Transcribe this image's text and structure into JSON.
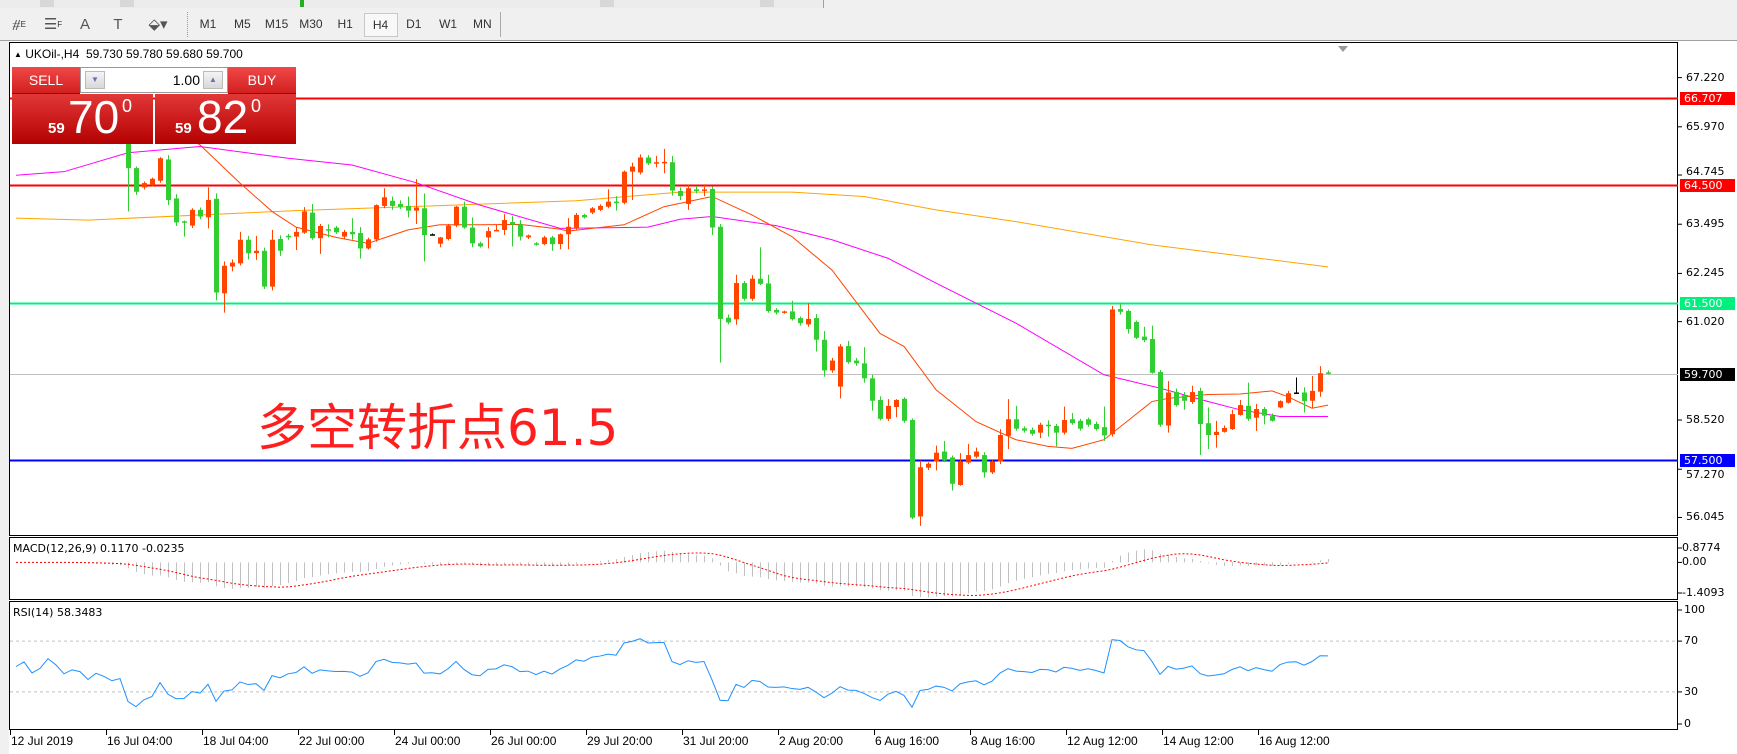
{
  "toolbar": {
    "tools": [
      {
        "name": "fibonacci-fan-icon",
        "glyph": "⧣",
        "sub": "E"
      },
      {
        "name": "channels-icon",
        "glyph": "☰",
        "sub": "F"
      },
      {
        "name": "text-icon",
        "glyph": "A",
        "sub": ""
      },
      {
        "name": "text-label-icon",
        "glyph": "T",
        "sub": ""
      },
      {
        "name": "arrows-icon",
        "glyph": "⬙▾",
        "sub": ""
      }
    ],
    "periods": [
      "M1",
      "M5",
      "M15",
      "M30",
      "H1",
      "H4",
      "D1",
      "W1",
      "MN"
    ],
    "active_period": "H4"
  },
  "chart": {
    "symbol": "UKOil-,H4",
    "open": "59.730",
    "high": "59.780",
    "low": "59.680",
    "close": "59.700",
    "annotation": "多空转折点61.5"
  },
  "trade_panel": {
    "sell_label": "SELL",
    "buy_label": "BUY",
    "lot": "1.00",
    "sell_price": {
      "prefix": "59",
      "main": "70",
      "sup": "0"
    },
    "buy_price": {
      "prefix": "59",
      "main": "82",
      "sup": "0"
    }
  },
  "indicators": {
    "macd_label": "MACD(12,26,9) 0.1170 -0.0235",
    "rsi_label": "RSI(14) 58.3483"
  },
  "chart_data": {
    "type": "candlestick",
    "symbol": "UKOil-",
    "timeframe": "H4",
    "colors": {
      "bull": "#ff4500",
      "bear": "#32cd32",
      "doji": "#000000",
      "bid_line": "#c0c0c0"
    },
    "candles_ohlc": [
      [
        66.6,
        66.85,
        66.45,
        66.7
      ],
      [
        66.7,
        66.95,
        66.55,
        66.8
      ],
      [
        66.8,
        66.9,
        66.5,
        66.55
      ],
      [
        66.55,
        66.75,
        66.4,
        66.65
      ],
      [
        66.65,
        66.95,
        66.6,
        66.9
      ],
      [
        66.9,
        67.05,
        66.7,
        66.75
      ],
      [
        66.75,
        66.85,
        66.45,
        66.5
      ],
      [
        66.5,
        66.7,
        66.3,
        66.6
      ],
      [
        66.6,
        66.8,
        66.45,
        66.55
      ],
      [
        66.55,
        66.65,
        66.2,
        66.3
      ],
      [
        66.3,
        66.55,
        66.15,
        66.45
      ],
      [
        66.45,
        66.6,
        66.25,
        66.35
      ],
      [
        66.35,
        66.5,
        66.1,
        66.2
      ],
      [
        66.2,
        66.4,
        66.0,
        66.25
      ],
      [
        66.25,
        66.35,
        63.82,
        64.92
      ],
      [
        64.92,
        64.96,
        64.24,
        64.32
      ],
      [
        64.43,
        64.58,
        64.38,
        64.54
      ],
      [
        64.49,
        64.68,
        64.45,
        64.65
      ],
      [
        64.6,
        65.2,
        64.55,
        65.17
      ],
      [
        65.14,
        65.25,
        63.98,
        64.11
      ],
      [
        64.15,
        64.26,
        63.45,
        63.54
      ],
      [
        63.57,
        63.59,
        63.18,
        63.55
      ],
      [
        63.46,
        63.9,
        63.4,
        63.86
      ],
      [
        63.86,
        63.92,
        63.62,
        63.69
      ],
      [
        63.67,
        64.43,
        63.39,
        64.11
      ],
      [
        64.14,
        64.28,
        61.56,
        61.76
      ],
      [
        61.74,
        62.55,
        61.25,
        62.44
      ],
      [
        62.42,
        62.6,
        62.3,
        62.52
      ],
      [
        62.5,
        63.3,
        62.45,
        63.1
      ],
      [
        63.1,
        63.2,
        62.6,
        62.76
      ],
      [
        62.76,
        63.2,
        62.59,
        62.82
      ],
      [
        62.82,
        62.9,
        61.85,
        61.91
      ],
      [
        61.91,
        63.35,
        61.81,
        63.1
      ],
      [
        63.12,
        63.21,
        62.69,
        62.82
      ],
      [
        63.2,
        63.25,
        63.1,
        63.18
      ],
      [
        63.18,
        63.42,
        62.84,
        63.3
      ],
      [
        63.28,
        63.93,
        63.25,
        63.82
      ],
      [
        63.79,
        64.01,
        63.1,
        63.14
      ],
      [
        63.14,
        63.5,
        62.74,
        63.45
      ],
      [
        63.37,
        63.49,
        63.16,
        63.35
      ],
      [
        63.41,
        63.45,
        63.25,
        63.29
      ],
      [
        63.18,
        63.35,
        63.12,
        63.3
      ],
      [
        63.3,
        63.65,
        63.1,
        63.24
      ],
      [
        63.27,
        63.42,
        62.62,
        62.88
      ],
      [
        62.88,
        63.15,
        62.85,
        63.11
      ],
      [
        63.11,
        64.0,
        63.05,
        63.98
      ],
      [
        63.96,
        64.41,
        63.9,
        64.18
      ],
      [
        64.09,
        64.2,
        63.86,
        63.96
      ],
      [
        64.01,
        64.1,
        63.88,
        63.93
      ],
      [
        63.96,
        64.2,
        63.67,
        63.84
      ],
      [
        63.84,
        64.64,
        63.5,
        63.92
      ],
      [
        63.9,
        64.28,
        62.55,
        63.22
      ],
      [
        63.24,
        63.26,
        63.22,
        63.24
      ],
      [
        63.0,
        63.17,
        62.91,
        63.16
      ],
      [
        63.12,
        63.5,
        63.08,
        63.46
      ],
      [
        63.46,
        63.96,
        63.42,
        63.94
      ],
      [
        63.94,
        64.07,
        63.38,
        63.41
      ],
      [
        63.41,
        63.67,
        62.91,
        63.01
      ],
      [
        63.01,
        63.05,
        62.9,
        62.93
      ],
      [
        63.16,
        63.42,
        62.88,
        63.32
      ],
      [
        63.34,
        63.48,
        63.31,
        63.35
      ],
      [
        63.35,
        63.75,
        63.22,
        63.6
      ],
      [
        63.55,
        63.7,
        62.93,
        63.49
      ],
      [
        63.49,
        63.6,
        63.08,
        63.18
      ],
      [
        63.16,
        63.23,
        63.12,
        63.21
      ],
      [
        63.01,
        63.04,
        62.95,
        62.99
      ],
      [
        62.99,
        63.2,
        62.96,
        63.16
      ],
      [
        63.16,
        63.2,
        62.82,
        62.99
      ],
      [
        62.99,
        63.26,
        62.86,
        63.24
      ],
      [
        63.24,
        63.65,
        62.86,
        63.43
      ],
      [
        63.39,
        63.78,
        63.35,
        63.73
      ],
      [
        63.73,
        63.76,
        63.64,
        63.67
      ],
      [
        63.79,
        63.93,
        63.75,
        63.9
      ],
      [
        63.86,
        64.0,
        63.83,
        63.96
      ],
      [
        63.94,
        64.38,
        63.9,
        64.07
      ],
      [
        64.07,
        64.21,
        63.84,
        64.03
      ],
      [
        64.04,
        64.86,
        64.0,
        64.83
      ],
      [
        64.83,
        65.06,
        64.11,
        64.96
      ],
      [
        64.81,
        65.27,
        64.76,
        65.19
      ],
      [
        65.19,
        65.25,
        65.0,
        65.04
      ],
      [
        65.06,
        65.23,
        64.94,
        65.07
      ],
      [
        65.07,
        65.41,
        64.79,
        65.08
      ],
      [
        65.07,
        65.23,
        64.22,
        64.35
      ],
      [
        64.34,
        64.43,
        64.11,
        64.21
      ],
      [
        64.01,
        64.49,
        63.86,
        64.41
      ],
      [
        64.38,
        64.47,
        64.28,
        64.34
      ],
      [
        64.35,
        64.51,
        64.21,
        64.38
      ],
      [
        64.39,
        64.45,
        63.22,
        63.41
      ],
      [
        63.43,
        63.5,
        59.98,
        61.09
      ],
      [
        61.12,
        61.2,
        60.95,
        61.0
      ],
      [
        61.08,
        62.21,
        60.94,
        62.0
      ],
      [
        62.0,
        62.05,
        61.55,
        61.6
      ],
      [
        61.6,
        62.2,
        61.55,
        62.11
      ],
      [
        62.11,
        62.91,
        61.95,
        61.98
      ],
      [
        61.99,
        62.21,
        61.25,
        61.29
      ],
      [
        61.32,
        61.36,
        61.2,
        61.25
      ],
      [
        61.25,
        61.3,
        61.22,
        61.28
      ],
      [
        61.28,
        61.55,
        61.05,
        61.08
      ],
      [
        61.11,
        61.15,
        60.92,
        60.98
      ],
      [
        60.95,
        61.49,
        60.89,
        61.09
      ],
      [
        61.11,
        61.21,
        60.26,
        60.56
      ],
      [
        60.56,
        60.78,
        59.62,
        59.78
      ],
      [
        59.78,
        60.1,
        59.72,
        60.03
      ],
      [
        59.37,
        60.45,
        59.07,
        60.39
      ],
      [
        60.4,
        60.53,
        59.95,
        59.99
      ],
      [
        60.03,
        60.1,
        59.9,
        59.96
      ],
      [
        59.96,
        60.37,
        59.47,
        59.58
      ],
      [
        59.58,
        59.67,
        58.76,
        59.01
      ],
      [
        59.03,
        59.12,
        58.51,
        58.55
      ],
      [
        58.55,
        59.05,
        58.5,
        58.88
      ],
      [
        58.85,
        59.05,
        58.59,
        59.03
      ],
      [
        59.06,
        59.1,
        58.45,
        58.5
      ],
      [
        58.52,
        58.56,
        56.0,
        56.04
      ],
      [
        56.07,
        57.49,
        55.83,
        57.32
      ],
      [
        57.31,
        57.45,
        57.25,
        57.41
      ],
      [
        57.47,
        57.87,
        57.24,
        57.69
      ],
      [
        57.72,
        57.99,
        57.45,
        57.49
      ],
      [
        57.57,
        57.62,
        56.73,
        56.9
      ],
      [
        56.87,
        57.68,
        56.85,
        57.47
      ],
      [
        57.44,
        57.91,
        57.4,
        57.63
      ],
      [
        57.59,
        57.82,
        57.55,
        57.72
      ],
      [
        57.63,
        57.7,
        57.06,
        57.19
      ],
      [
        57.19,
        57.5,
        57.15,
        57.47
      ],
      [
        57.47,
        58.29,
        57.4,
        58.14
      ],
      [
        58.12,
        59.05,
        57.78,
        58.54
      ],
      [
        58.54,
        58.88,
        58.25,
        58.3
      ],
      [
        58.31,
        58.36,
        58.2,
        58.25
      ],
      [
        58.27,
        58.33,
        58.12,
        58.17
      ],
      [
        58.2,
        58.45,
        58.06,
        58.4
      ],
      [
        58.4,
        58.51,
        58.1,
        58.37
      ],
      [
        58.37,
        58.42,
        57.85,
        58.2
      ],
      [
        58.2,
        58.86,
        58.15,
        58.52
      ],
      [
        58.54,
        58.7,
        58.4,
        58.44
      ],
      [
        58.5,
        58.55,
        58.25,
        58.3
      ],
      [
        58.54,
        58.58,
        58.35,
        58.4
      ],
      [
        58.42,
        58.48,
        58.25,
        58.29
      ],
      [
        58.34,
        58.86,
        57.99,
        58.13
      ],
      [
        58.16,
        61.42,
        58.1,
        61.33
      ],
      [
        61.34,
        61.49,
        61.2,
        61.27
      ],
      [
        61.29,
        61.33,
        60.72,
        60.83
      ],
      [
        61.01,
        61.05,
        60.58,
        60.61
      ],
      [
        60.64,
        60.89,
        60.5,
        60.55
      ],
      [
        60.58,
        60.92,
        59.7,
        59.72
      ],
      [
        59.74,
        59.79,
        58.35,
        58.4
      ],
      [
        58.38,
        59.51,
        58.2,
        59.22
      ],
      [
        59.23,
        59.32,
        58.86,
        58.9
      ],
      [
        59.15,
        59.23,
        58.78,
        59.01
      ],
      [
        58.98,
        59.39,
        58.93,
        59.23
      ],
      [
        59.26,
        59.34,
        57.63,
        58.42
      ],
      [
        58.44,
        58.84,
        57.78,
        58.14
      ],
      [
        58.14,
        58.5,
        57.82,
        58.22
      ],
      [
        58.22,
        58.38,
        58.2,
        58.32
      ],
      [
        58.29,
        58.78,
        58.27,
        58.67
      ],
      [
        58.65,
        59.03,
        58.63,
        58.9
      ],
      [
        58.88,
        59.47,
        58.5,
        58.55
      ],
      [
        58.58,
        58.93,
        58.24,
        58.8
      ],
      [
        58.8,
        58.85,
        58.41,
        58.63
      ],
      [
        58.62,
        58.69,
        58.48,
        58.5
      ],
      [
        58.84,
        59.02,
        58.82,
        59.0
      ],
      [
        58.96,
        59.26,
        58.94,
        59.2
      ],
      [
        59.22,
        59.6,
        59.2,
        59.22
      ],
      [
        59.22,
        59.35,
        58.71,
        59.0
      ],
      [
        59.01,
        59.64,
        58.82,
        59.26
      ],
      [
        59.24,
        59.89,
        59.11,
        59.71
      ],
      [
        59.73,
        59.78,
        59.68,
        59.7
      ]
    ],
    "moving_averages": [
      {
        "color": "#ffa500",
        "points": [
          [
            0,
            63.65
          ],
          [
            9,
            63.6
          ],
          [
            35,
            63.84
          ],
          [
            49,
            63.94
          ],
          [
            70,
            64.09
          ],
          [
            83,
            64.31
          ],
          [
            97,
            64.31
          ],
          [
            106,
            64.2
          ],
          [
            115,
            63.86
          ],
          [
            125,
            63.56
          ],
          [
            142,
            62.97
          ],
          [
            164,
            62.41
          ]
        ]
      },
      {
        "color": "#ff00ff",
        "points": [
          [
            0,
            64.74
          ],
          [
            6,
            64.83
          ],
          [
            14,
            65.31
          ],
          [
            23,
            65.47
          ],
          [
            34,
            65.17
          ],
          [
            42,
            65.0
          ],
          [
            50,
            64.55
          ],
          [
            58,
            63.98
          ],
          [
            68,
            63.39
          ],
          [
            79,
            63.42
          ],
          [
            83,
            63.62
          ],
          [
            87,
            63.69
          ],
          [
            95,
            63.46
          ],
          [
            102,
            63.1
          ],
          [
            109,
            62.63
          ],
          [
            115,
            62.0
          ],
          [
            125,
            60.98
          ],
          [
            136,
            59.67
          ],
          [
            143,
            59.33
          ],
          [
            149,
            58.99
          ],
          [
            153,
            58.78
          ],
          [
            158,
            58.61
          ],
          [
            164,
            58.61
          ]
        ]
      },
      {
        "color": "#ff4500",
        "points": [
          [
            18,
            66.2
          ],
          [
            23,
            65.51
          ],
          [
            28,
            64.54
          ],
          [
            32,
            63.82
          ],
          [
            35,
            63.42
          ],
          [
            40,
            63.16
          ],
          [
            44,
            63.01
          ],
          [
            49,
            63.35
          ],
          [
            53,
            63.48
          ],
          [
            58,
            63.48
          ],
          [
            63,
            63.49
          ],
          [
            68,
            63.37
          ],
          [
            69,
            63.32
          ],
          [
            76,
            63.48
          ],
          [
            81,
            63.94
          ],
          [
            87,
            64.2
          ],
          [
            92,
            63.73
          ],
          [
            97,
            63.18
          ],
          [
            102,
            62.33
          ],
          [
            108,
            60.72
          ],
          [
            111,
            60.39
          ],
          [
            115,
            59.29
          ],
          [
            120,
            58.48
          ],
          [
            125,
            58.02
          ],
          [
            129,
            57.85
          ],
          [
            132,
            57.8
          ],
          [
            136,
            58.02
          ],
          [
            142,
            58.99
          ],
          [
            144,
            59.07
          ],
          [
            149,
            59.17
          ],
          [
            153,
            59.18
          ],
          [
            157,
            59.26
          ],
          [
            159,
            59.11
          ],
          [
            162,
            58.82
          ],
          [
            164,
            58.9
          ]
        ]
      }
    ],
    "hlines": [
      {
        "value": 66.707,
        "label": "66.707",
        "color": "#ff0000"
      },
      {
        "value": 64.5,
        "label": "64.500",
        "color": "#ff0000"
      },
      {
        "value": 61.5,
        "label": "61.500",
        "color": "#00f080"
      },
      {
        "value": 59.7,
        "label": "59.700",
        "color": "#000000",
        "line_color": "#c0c0c0"
      },
      {
        "value": 57.5,
        "label": "57.500",
        "color": "#0000ff"
      }
    ],
    "price_axis_ticks": [
      "67.220",
      "65.970",
      "64.745",
      "63.495",
      "62.245",
      "61.020",
      "58.520",
      "57.270",
      "56.045"
    ],
    "price_range": [
      56.045,
      67.22
    ],
    "time_labels": [
      "12 Jul 2019",
      "16 Jul 04:00",
      "18 Jul 04:00",
      "22 Jul 00:00",
      "24 Jul 00:00",
      "26 Jul 00:00",
      "29 Jul 20:00",
      "31 Jul 20:00",
      "2 Aug 20:00",
      "6 Aug 16:00",
      "8 Aug 16:00",
      "12 Aug 12:00",
      "14 Aug 12:00",
      "16 Aug 12:00"
    ],
    "time_label_every_bars": 12,
    "macd": {
      "fast": 12,
      "slow": 26,
      "signal": 9,
      "range": [
        -1.4093,
        0.8774
      ],
      "axis_labels": [
        "0.8774",
        "0.00",
        "-1.4093"
      ],
      "hist_color": "#c0c0c0",
      "signal_color": "#ff0000"
    },
    "rsi": {
      "period": 14,
      "levels": [
        30,
        70
      ],
      "axis_labels": [
        "100",
        "70",
        "30",
        "0"
      ],
      "color": "#1e90ff"
    }
  }
}
